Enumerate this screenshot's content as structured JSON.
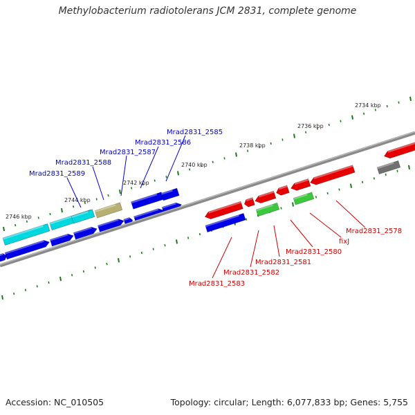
{
  "title": "Methylobacterium radiotolerans JCM 2831, complete genome",
  "footer": {
    "accession": "Accession: NC_010505",
    "summary": "Topology: circular; Length: 6,077,833 bp; Genes: 5,755"
  },
  "scale_labels": [
    "2734 kbp",
    "2736 kbp",
    "2738 kbp",
    "2740 kbp",
    "2742 kbp",
    "2744 kbp",
    "2746 kbp"
  ],
  "gene_labels": {
    "forward_strand": [
      "Mrad2831_2589",
      "Mrad2831_2588",
      "Mrad2831_2587",
      "Mrad2831_2586",
      "Mrad2831_2585"
    ],
    "reverse_strand": [
      "Mrad2831_2583",
      "Mrad2831_2582",
      "Mrad2831_2581",
      "Mrad2831_2580",
      "fixJ",
      "Mrad2831_2578"
    ]
  },
  "colors": {
    "blue": "#0000e6",
    "red": "#e60000",
    "cyan": "#00d8e0",
    "olive": "#b8b070",
    "green": "#3cc83c",
    "gray": "#707070",
    "backbone": "#8a8a8a",
    "tick": "#1a7a1a"
  }
}
